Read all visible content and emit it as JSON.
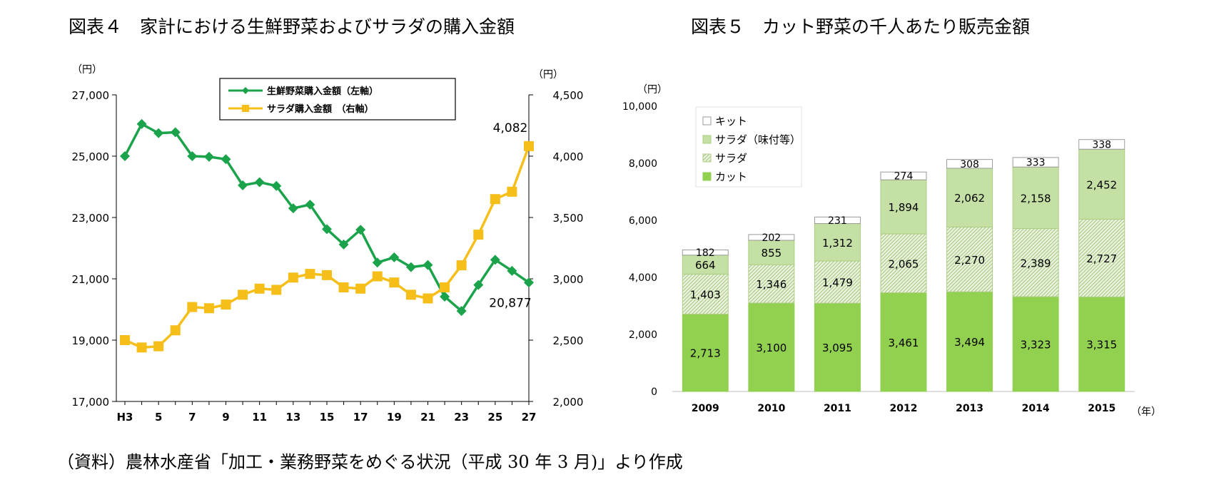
{
  "titles": {
    "fig4": "図表４　家計における生鮮野菜およびサラダの購入金額",
    "fig5": "図表５　カット野菜の千人あたり販売金額"
  },
  "source": "（資料）農林水産省「加工・業務野菜をめぐる状況（平成 30 年 3 月)」より作成",
  "colors": {
    "green_line": "#1aa34a",
    "yellow_line": "#f5be18",
    "cut": "#92d050",
    "salad_flavored": "#c5e0a5",
    "salad": "#e6f0d5",
    "kit": "#ffffff"
  },
  "chart_data": [
    {
      "type": "line",
      "title": "家計における生鮮野菜およびサラダの購入金額",
      "y_unit_left": "（円）",
      "y_unit_right": "（円）",
      "x": [
        "H3",
        "4",
        "5",
        "6",
        "7",
        "8",
        "9",
        "10",
        "11",
        "12",
        "13",
        "14",
        "15",
        "16",
        "17",
        "18",
        "19",
        "20",
        "21",
        "22",
        "23",
        "24",
        "25",
        "26",
        "27"
      ],
      "x_tick_labels": [
        "H3",
        "5",
        "7",
        "9",
        "11",
        "13",
        "15",
        "17",
        "19",
        "21",
        "23",
        "25",
        "27"
      ],
      "ylim_left": [
        17000,
        27000
      ],
      "yticks_left": [
        "17,000",
        "19,000",
        "21,000",
        "23,000",
        "25,000",
        "27,000"
      ],
      "ylim_right": [
        2000,
        4500
      ],
      "yticks_right": [
        "2,000",
        "2,500",
        "3,000",
        "3,500",
        "4,000",
        "4,500"
      ],
      "series": [
        {
          "name": "生鮮野菜購入金額（左軸）",
          "axis": "left",
          "marker": "diamond",
          "values": [
            25000,
            26050,
            25750,
            25780,
            25000,
            24980,
            24900,
            24050,
            24150,
            24030,
            23300,
            23420,
            22620,
            22120,
            22600,
            21530,
            21700,
            21380,
            21450,
            20420,
            19950,
            20800,
            21620,
            21260,
            20877
          ]
        },
        {
          "name": "サラダ購入金額　（右軸）",
          "axis": "right",
          "marker": "square",
          "values": [
            2500,
            2440,
            2450,
            2580,
            2770,
            2760,
            2790,
            2870,
            2920,
            2910,
            3010,
            3040,
            3030,
            2930,
            2920,
            3020,
            2970,
            2870,
            2840,
            2930,
            3110,
            3360,
            3650,
            3710,
            4082
          ]
        }
      ],
      "annotations": [
        {
          "series": 1,
          "index": 24,
          "text": "4,082"
        },
        {
          "series": 0,
          "index": 24,
          "text": "20,877"
        }
      ],
      "legend_position": "top-center"
    },
    {
      "type": "bar",
      "stacked": true,
      "title": "カット野菜の千人あたり販売金額",
      "y_unit": "（円）",
      "x_unit": "（年）",
      "categories": [
        "2009",
        "2010",
        "2011",
        "2012",
        "2013",
        "2014",
        "2015"
      ],
      "ylim": [
        0,
        10000
      ],
      "yticks": [
        "0",
        "2,000",
        "4,000",
        "6,000",
        "8,000",
        "10,000"
      ],
      "series": [
        {
          "name": "カット",
          "values": [
            2713,
            3100,
            3095,
            3461,
            3494,
            3323,
            3315
          ],
          "labels": [
            "2,713",
            "3,100",
            "3,095",
            "3,461",
            "3,494",
            "3,323",
            "3,315"
          ]
        },
        {
          "name": "サラダ",
          "values": [
            1403,
            1346,
            1479,
            2065,
            2270,
            2389,
            2727
          ],
          "labels": [
            "1,403",
            "1,346",
            "1,479",
            "2,065",
            "2,270",
            "2,389",
            "2,727"
          ]
        },
        {
          "name": "サラダ（味付等）",
          "values": [
            664,
            855,
            1312,
            1894,
            2062,
            2158,
            2452
          ],
          "labels": [
            "664",
            "855",
            "1,312",
            "1,894",
            "2,062",
            "2,158",
            "2,452"
          ]
        },
        {
          "name": "キット",
          "values": [
            182,
            202,
            231,
            274,
            308,
            333,
            338
          ],
          "labels": [
            "182",
            "202",
            "231",
            "274",
            "308",
            "333",
            "338"
          ]
        }
      ],
      "legend_order": [
        "キット",
        "サラダ（味付等）",
        "サラダ",
        "カット"
      ],
      "legend_position": "top-left"
    }
  ]
}
